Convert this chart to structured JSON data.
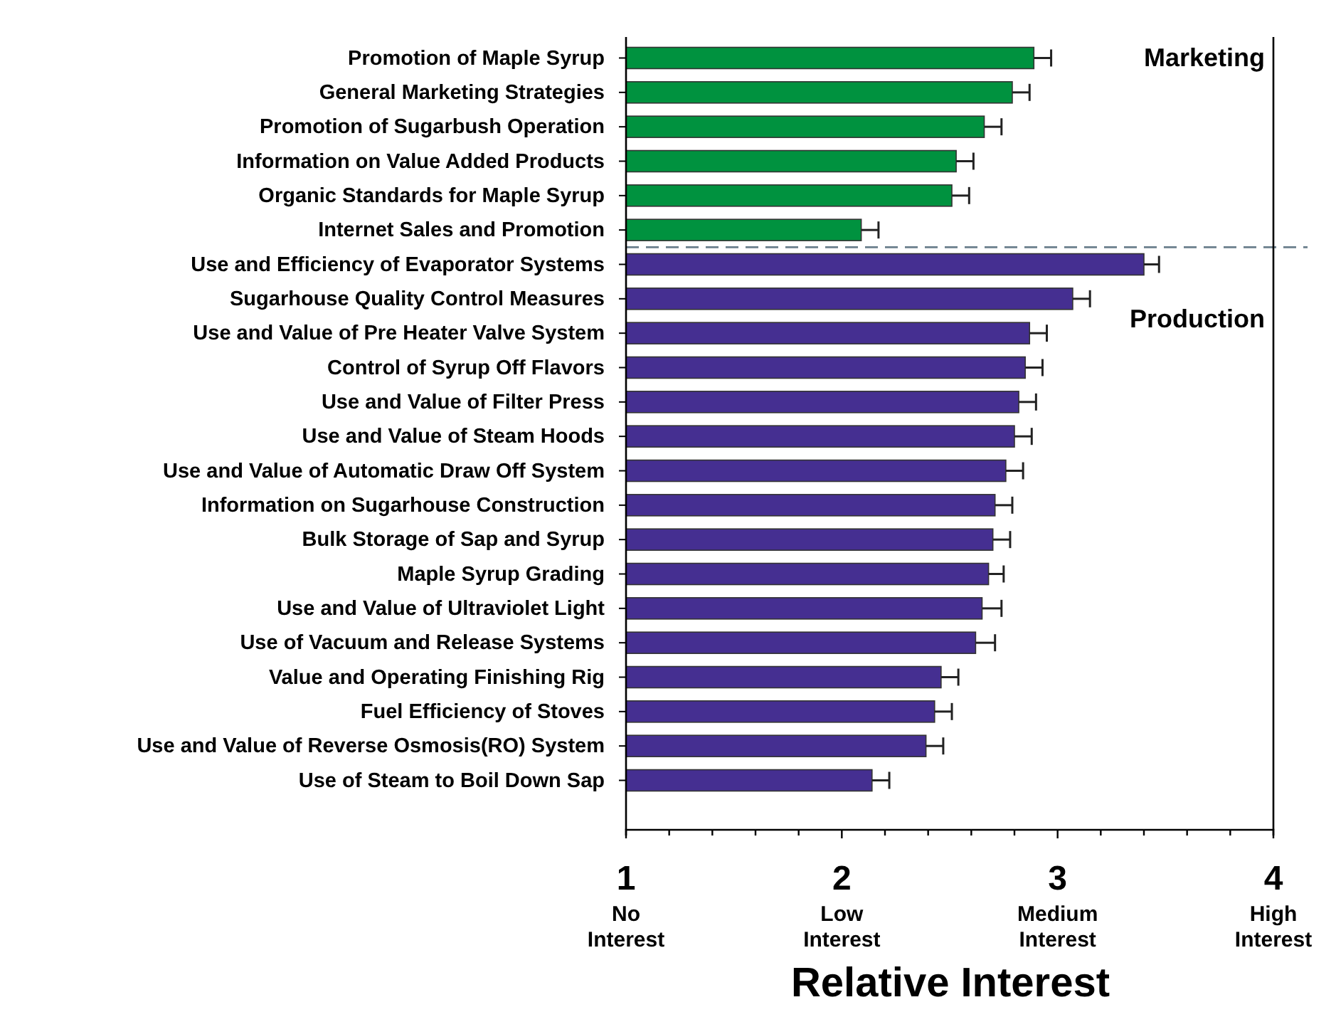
{
  "chart_data": {
    "type": "bar",
    "orientation": "horizontal",
    "xlabel": "Relative Interest",
    "categories": [
      "Promotion of Maple Syrup",
      "General Marketing Strategies",
      "Promotion of Sugarbush Operation",
      "Information on Value Added Products",
      "Organic Standards for Maple Syrup",
      "Internet Sales and Promotion",
      "Use and Efficiency of Evaporator Systems",
      "Sugarhouse Quality Control Measures",
      "Use and Value of Pre Heater Valve System",
      "Control of Syrup Off Flavors",
      "Use and Value  of Filter Press",
      "Use and Value of Steam Hoods",
      "Use and Value of Automatic Draw Off System",
      "Information on Sugarhouse Construction",
      "Bulk Storage of Sap and Syrup",
      "Maple Syrup Grading",
      "Use and Value of Ultraviolet Light",
      "Use of Vacuum and Release Systems",
      "Value and Operating Finishing Rig",
      "Fuel Efficiency of Stoves",
      "Use and Value of Reverse Osmosis(RO) System",
      "Use of Steam to Boil Down Sap"
    ],
    "series": [
      {
        "name": "Marketing",
        "color": "#00923f",
        "values": [
          2.89,
          2.79,
          2.66,
          2.53,
          2.51,
          2.09,
          null,
          null,
          null,
          null,
          null,
          null,
          null,
          null,
          null,
          null,
          null,
          null,
          null,
          null,
          null,
          null
        ],
        "errors": [
          [
            2.89,
            2.97
          ],
          [
            2.79,
            2.87
          ],
          [
            2.66,
            2.74
          ],
          [
            2.53,
            2.61
          ],
          [
            2.51,
            2.59
          ],
          [
            2.09,
            2.17
          ],
          null,
          null,
          null,
          null,
          null,
          null,
          null,
          null,
          null,
          null,
          null,
          null,
          null,
          null,
          null,
          null
        ]
      },
      {
        "name": "Production",
        "color": "#452f91",
        "values": [
          null,
          null,
          null,
          null,
          null,
          null,
          3.4,
          3.07,
          2.87,
          2.85,
          2.82,
          2.8,
          2.76,
          2.71,
          2.7,
          2.68,
          2.65,
          2.62,
          2.46,
          2.43,
          2.39,
          2.14
        ],
        "errors": [
          null,
          null,
          null,
          null,
          null,
          null,
          [
            3.4,
            3.47
          ],
          [
            3.07,
            3.15
          ],
          [
            2.87,
            2.95
          ],
          [
            2.85,
            2.93
          ],
          [
            2.82,
            2.9
          ],
          [
            2.8,
            2.88
          ],
          [
            2.76,
            2.84
          ],
          [
            2.71,
            2.79
          ],
          [
            2.7,
            2.78
          ],
          [
            2.68,
            2.75
          ],
          [
            2.65,
            2.74
          ],
          [
            2.62,
            2.71
          ],
          [
            2.46,
            2.54
          ],
          [
            2.43,
            2.51
          ],
          [
            2.39,
            2.47
          ],
          [
            2.14,
            2.22
          ]
        ]
      }
    ],
    "xlim": [
      1,
      4
    ],
    "xticks": [
      {
        "value": 1,
        "label": "1\nNo\nInterest"
      },
      {
        "value": 1.2,
        "label": null
      },
      {
        "value": 1.4,
        "label": null
      },
      {
        "value": 1.6,
        "label": null
      },
      {
        "value": 1.8,
        "label": null
      },
      {
        "value": 2,
        "label": "2\nLow\nInterest"
      },
      {
        "value": 2.2,
        "label": null
      },
      {
        "value": 2.4,
        "label": null
      },
      {
        "value": 2.6,
        "label": null
      },
      {
        "value": 2.8,
        "label": null
      },
      {
        "value": 3,
        "label": "3\nMedium\nInterest"
      },
      {
        "value": 3.2,
        "label": null
      },
      {
        "value": 3.4,
        "label": null
      },
      {
        "value": 3.6,
        "label": null
      },
      {
        "value": 3.8,
        "label": null
      },
      {
        "value": 4,
        "label": "4\nHigh\nInterest"
      }
    ],
    "grid": false
  }
}
